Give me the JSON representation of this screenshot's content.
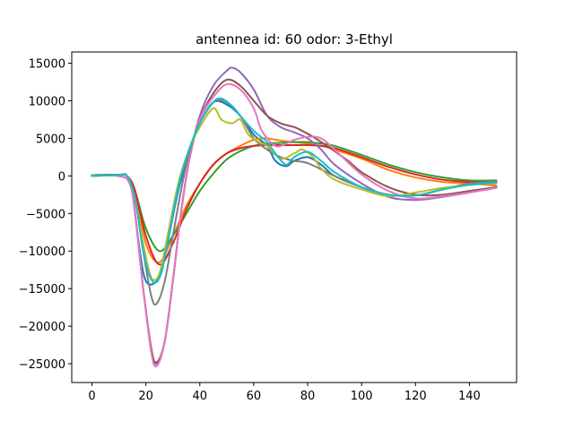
{
  "chart_data": {
    "type": "line",
    "title": "antennea id: 60    odor: 3-Ethyl",
    "xlabel": "",
    "ylabel": "",
    "xlim": [
      -7.5,
      157.5
    ],
    "ylim": [
      -27500,
      16500
    ],
    "xticks": [
      0,
      20,
      40,
      60,
      80,
      100,
      120,
      140
    ],
    "xtick_labels": [
      "0",
      "20",
      "40",
      "60",
      "80",
      "100",
      "120",
      "140"
    ],
    "yticks": [
      15000,
      10000,
      5000,
      0,
      -5000,
      -10000,
      -15000,
      -20000,
      -25000
    ],
    "ytick_labels": [
      "15000",
      "10000",
      "5000",
      "0",
      "−5000",
      "−10000",
      "−15000",
      "−20000",
      "−25000"
    ],
    "grid": false,
    "legend": "none",
    "series": [
      {
        "color": "#1f77b4",
        "points": [
          [
            0,
            100
          ],
          [
            10,
            150
          ],
          [
            13,
            0
          ],
          [
            15,
            -2000
          ],
          [
            17,
            -8000
          ],
          [
            20,
            -14000
          ],
          [
            25,
            -13500
          ],
          [
            28,
            -9000
          ],
          [
            32,
            -2000
          ],
          [
            36,
            3000
          ],
          [
            40,
            7000
          ],
          [
            45,
            9800
          ],
          [
            50,
            9500
          ],
          [
            55,
            8000
          ],
          [
            60,
            5500
          ],
          [
            65,
            4000
          ],
          [
            68,
            2000
          ],
          [
            72,
            1300
          ],
          [
            75,
            2000
          ],
          [
            80,
            2500
          ],
          [
            85,
            1500
          ],
          [
            90,
            0
          ],
          [
            100,
            -1500
          ],
          [
            110,
            -2500
          ],
          [
            120,
            -2600
          ],
          [
            130,
            -1800
          ],
          [
            140,
            -1000
          ],
          [
            150,
            -700
          ]
        ]
      },
      {
        "color": "#ff7f0e",
        "points": [
          [
            0,
            100
          ],
          [
            10,
            150
          ],
          [
            13,
            0
          ],
          [
            16,
            -2000
          ],
          [
            20,
            -9000
          ],
          [
            25,
            -11500
          ],
          [
            30,
            -8000
          ],
          [
            35,
            -4000
          ],
          [
            40,
            -1000
          ],
          [
            45,
            1500
          ],
          [
            50,
            3000
          ],
          [
            55,
            4000
          ],
          [
            60,
            4800
          ],
          [
            65,
            5000
          ],
          [
            70,
            4700
          ],
          [
            75,
            4500
          ],
          [
            80,
            4300
          ],
          [
            85,
            4000
          ],
          [
            90,
            3500
          ],
          [
            100,
            2300
          ],
          [
            110,
            800
          ],
          [
            120,
            -200
          ],
          [
            130,
            -800
          ],
          [
            140,
            -1000
          ],
          [
            150,
            -1300
          ]
        ]
      },
      {
        "color": "#2ca02c",
        "points": [
          [
            0,
            100
          ],
          [
            10,
            150
          ],
          [
            13,
            0
          ],
          [
            16,
            -2000
          ],
          [
            20,
            -7000
          ],
          [
            25,
            -10000
          ],
          [
            30,
            -8000
          ],
          [
            35,
            -5000
          ],
          [
            40,
            -2000
          ],
          [
            45,
            300
          ],
          [
            50,
            2200
          ],
          [
            55,
            3300
          ],
          [
            60,
            4000
          ],
          [
            65,
            4300
          ],
          [
            70,
            4400
          ],
          [
            75,
            4500
          ],
          [
            80,
            4500
          ],
          [
            85,
            4300
          ],
          [
            90,
            4000
          ],
          [
            100,
            2800
          ],
          [
            110,
            1500
          ],
          [
            120,
            500
          ],
          [
            130,
            -200
          ],
          [
            140,
            -600
          ],
          [
            150,
            -600
          ]
        ]
      },
      {
        "color": "#d62728",
        "points": [
          [
            0,
            100
          ],
          [
            10,
            150
          ],
          [
            13,
            0
          ],
          [
            16,
            -2000
          ],
          [
            20,
            -8000
          ],
          [
            25,
            -11800
          ],
          [
            30,
            -9000
          ],
          [
            35,
            -4500
          ],
          [
            40,
            -1000
          ],
          [
            45,
            1500
          ],
          [
            50,
            3000
          ],
          [
            55,
            3700
          ],
          [
            60,
            4000
          ],
          [
            65,
            4100
          ],
          [
            70,
            4100
          ],
          [
            75,
            4100
          ],
          [
            80,
            4100
          ],
          [
            85,
            4000
          ],
          [
            90,
            3700
          ],
          [
            100,
            2500
          ],
          [
            110,
            1200
          ],
          [
            120,
            200
          ],
          [
            130,
            -500
          ],
          [
            140,
            -800
          ],
          [
            150,
            -800
          ]
        ]
      },
      {
        "color": "#9467bd",
        "points": [
          [
            0,
            0
          ],
          [
            10,
            0
          ],
          [
            14,
            -1000
          ],
          [
            16,
            -5000
          ],
          [
            19,
            -15000
          ],
          [
            22,
            -23000
          ],
          [
            24,
            -25000
          ],
          [
            27,
            -22000
          ],
          [
            30,
            -14000
          ],
          [
            33,
            -5000
          ],
          [
            36,
            2000
          ],
          [
            40,
            8000
          ],
          [
            45,
            12000
          ],
          [
            50,
            14000
          ],
          [
            52,
            14400
          ],
          [
            55,
            13800
          ],
          [
            60,
            11500
          ],
          [
            65,
            8000
          ],
          [
            70,
            6500
          ],
          [
            75,
            5800
          ],
          [
            80,
            5000
          ],
          [
            85,
            3500
          ],
          [
            90,
            1500
          ],
          [
            100,
            -1000
          ],
          [
            110,
            -2800
          ],
          [
            120,
            -3200
          ],
          [
            130,
            -2800
          ],
          [
            140,
            -2200
          ],
          [
            150,
            -1500
          ]
        ]
      },
      {
        "color": "#8c564b",
        "points": [
          [
            0,
            0
          ],
          [
            10,
            0
          ],
          [
            14,
            -1000
          ],
          [
            16,
            -5000
          ],
          [
            19,
            -15000
          ],
          [
            22,
            -23000
          ],
          [
            24,
            -24800
          ],
          [
            27,
            -22000
          ],
          [
            30,
            -14000
          ],
          [
            33,
            -5000
          ],
          [
            36,
            2000
          ],
          [
            40,
            7500
          ],
          [
            45,
            11000
          ],
          [
            50,
            12800
          ],
          [
            55,
            12000
          ],
          [
            60,
            10000
          ],
          [
            65,
            8000
          ],
          [
            70,
            7000
          ],
          [
            75,
            6500
          ],
          [
            78,
            6000
          ],
          [
            82,
            5200
          ],
          [
            88,
            3800
          ],
          [
            95,
            2000
          ],
          [
            100,
            500
          ],
          [
            110,
            -1500
          ],
          [
            120,
            -2500
          ],
          [
            130,
            -2500
          ],
          [
            140,
            -2000
          ],
          [
            150,
            -1500
          ]
        ]
      },
      {
        "color": "#e377c2",
        "points": [
          [
            0,
            0
          ],
          [
            10,
            0
          ],
          [
            14,
            -1000
          ],
          [
            16,
            -5000
          ],
          [
            19,
            -15000
          ],
          [
            22,
            -23500
          ],
          [
            24,
            -25300
          ],
          [
            27,
            -22000
          ],
          [
            30,
            -14000
          ],
          [
            33,
            -5000
          ],
          [
            36,
            2000
          ],
          [
            40,
            7500
          ],
          [
            45,
            10500
          ],
          [
            50,
            12200
          ],
          [
            55,
            11500
          ],
          [
            60,
            9000
          ],
          [
            63,
            6000
          ],
          [
            68,
            4000
          ],
          [
            72,
            4300
          ],
          [
            75,
            4800
          ],
          [
            80,
            5200
          ],
          [
            85,
            5000
          ],
          [
            90,
            3500
          ],
          [
            100,
            200
          ],
          [
            110,
            -2000
          ],
          [
            120,
            -3000
          ],
          [
            130,
            -2700
          ],
          [
            140,
            -2200
          ],
          [
            150,
            -1600
          ]
        ]
      },
      {
        "color": "#7f7f7f",
        "points": [
          [
            0,
            100
          ],
          [
            10,
            150
          ],
          [
            13,
            0
          ],
          [
            16,
            -3000
          ],
          [
            19,
            -10000
          ],
          [
            22,
            -16000
          ],
          [
            24,
            -17000
          ],
          [
            27,
            -14000
          ],
          [
            30,
            -8000
          ],
          [
            33,
            -2000
          ],
          [
            36,
            3000
          ],
          [
            40,
            7000
          ],
          [
            45,
            9800
          ],
          [
            50,
            9800
          ],
          [
            55,
            8000
          ],
          [
            60,
            5000
          ],
          [
            65,
            3500
          ],
          [
            70,
            2500
          ],
          [
            75,
            2000
          ],
          [
            80,
            1700
          ],
          [
            90,
            0
          ],
          [
            100,
            -1500
          ],
          [
            110,
            -2500
          ],
          [
            120,
            -2600
          ],
          [
            130,
            -1800
          ],
          [
            140,
            -1000
          ],
          [
            150,
            -700
          ]
        ]
      },
      {
        "color": "#bcbd22",
        "points": [
          [
            0,
            0
          ],
          [
            10,
            100
          ],
          [
            13,
            0
          ],
          [
            16,
            -3000
          ],
          [
            19,
            -9000
          ],
          [
            22,
            -13500
          ],
          [
            25,
            -13000
          ],
          [
            28,
            -8000
          ],
          [
            32,
            -1000
          ],
          [
            36,
            3500
          ],
          [
            40,
            6500
          ],
          [
            45,
            9000
          ],
          [
            48,
            7500
          ],
          [
            52,
            7000
          ],
          [
            55,
            7500
          ],
          [
            58,
            5500
          ],
          [
            62,
            4500
          ],
          [
            65,
            4000
          ],
          [
            70,
            2300
          ],
          [
            75,
            3000
          ],
          [
            78,
            3500
          ],
          [
            82,
            2500
          ],
          [
            85,
            1000
          ],
          [
            90,
            -500
          ],
          [
            100,
            -1800
          ],
          [
            110,
            -2700
          ],
          [
            120,
            -2200
          ],
          [
            130,
            -1600
          ],
          [
            140,
            -1200
          ],
          [
            150,
            -1000
          ]
        ]
      },
      {
        "color": "#17becf",
        "points": [
          [
            0,
            0
          ],
          [
            10,
            100
          ],
          [
            13,
            0
          ],
          [
            16,
            -3000
          ],
          [
            19,
            -10000
          ],
          [
            22,
            -13800
          ],
          [
            25,
            -13600
          ],
          [
            28,
            -9000
          ],
          [
            32,
            -1500
          ],
          [
            36,
            3500
          ],
          [
            40,
            7000
          ],
          [
            45,
            9800
          ],
          [
            48,
            10300
          ],
          [
            52,
            9300
          ],
          [
            55,
            8000
          ],
          [
            60,
            6000
          ],
          [
            65,
            4500
          ],
          [
            68,
            3000
          ],
          [
            72,
            1500
          ],
          [
            75,
            2500
          ],
          [
            80,
            3200
          ],
          [
            85,
            2000
          ],
          [
            90,
            500
          ],
          [
            100,
            -1500
          ],
          [
            110,
            -2500
          ],
          [
            120,
            -2600
          ],
          [
            130,
            -1800
          ],
          [
            140,
            -1200
          ],
          [
            150,
            -900
          ]
        ]
      }
    ]
  }
}
